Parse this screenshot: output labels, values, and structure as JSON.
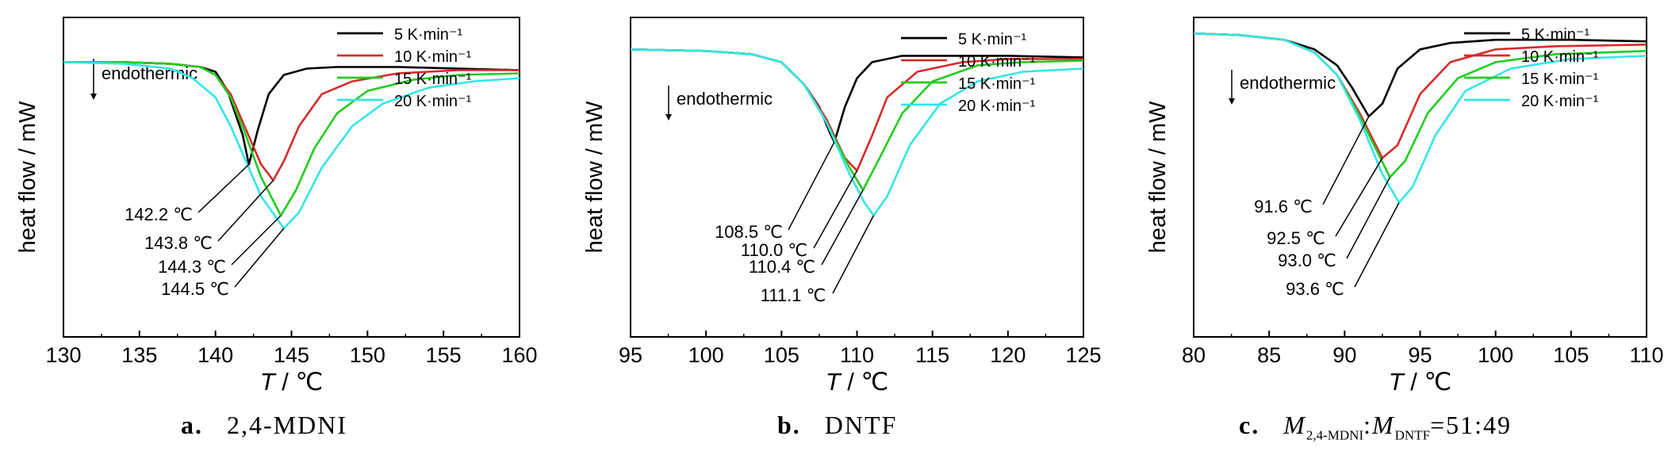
{
  "figure": {
    "y_axis_label": "heat flow / mW",
    "x_axis_label": {
      "var": "T",
      "unit": " / ℃"
    },
    "annotation": "endothermic",
    "legend": [
      "5 K·min⁻¹",
      "10 K·min⁻¹",
      "15 K·min⁻¹",
      "20 K·min⁻¹"
    ],
    "colors": {
      "5": "#000000",
      "10": "#d62b2b",
      "15": "#22cc22",
      "20": "#33e6e6"
    }
  },
  "captions": {
    "a": {
      "label": "a.",
      "text": "2,4-MDNI"
    },
    "b": {
      "label": "b.",
      "text": "DNTF"
    },
    "c": {
      "label": "c.",
      "m1": "M",
      "sub1": "2,4-MDNI",
      "colon": ":",
      "m2": "M",
      "sub2": "DNTF",
      "ratio": "=51:49"
    }
  },
  "chart_data": [
    {
      "type": "line",
      "panel": "a",
      "xlabel": "T / ℃",
      "ylabel": "heat flow / mW",
      "xlim": [
        130,
        160
      ],
      "xticks": [
        130,
        135,
        140,
        145,
        150,
        155,
        160
      ],
      "ylim": [
        0,
        10
      ],
      "grid": false,
      "legend_position": "top-right",
      "series": [
        {
          "name": "5 K·min⁻¹",
          "color": "#000000",
          "x": [
            130,
            134,
            137,
            139,
            140,
            140.8,
            141.3,
            141.8,
            142.2,
            142.8,
            143.5,
            144.5,
            146,
            148,
            152,
            156,
            160
          ],
          "y": [
            8.6,
            8.6,
            8.55,
            8.45,
            8.3,
            7.7,
            7.0,
            6.3,
            5.4,
            6.5,
            7.6,
            8.2,
            8.4,
            8.45,
            8.45,
            8.4,
            8.35
          ]
        },
        {
          "name": "10 K·min⁻¹",
          "color": "#d62b2b",
          "x": [
            130,
            134,
            137,
            139,
            140,
            141,
            142,
            143,
            143.8,
            144.5,
            145.5,
            147,
            149,
            152,
            156,
            160
          ],
          "y": [
            8.6,
            8.6,
            8.55,
            8.45,
            8.2,
            7.6,
            6.5,
            5.4,
            4.9,
            5.5,
            6.6,
            7.6,
            8.0,
            8.25,
            8.35,
            8.35
          ]
        },
        {
          "name": "15 K·min⁻¹",
          "color": "#22cc22",
          "x": [
            130,
            134,
            137,
            139,
            140,
            141,
            142,
            143,
            144.3,
            145.3,
            146.5,
            148,
            150,
            153,
            156,
            160
          ],
          "y": [
            8.6,
            8.6,
            8.55,
            8.45,
            8.2,
            7.5,
            6.3,
            5.0,
            3.8,
            4.6,
            5.9,
            7.0,
            7.7,
            8.05,
            8.2,
            8.25
          ]
        },
        {
          "name": "20 K·min⁻¹",
          "color": "#33e6e6",
          "x": [
            130,
            134,
            137,
            138.5,
            140,
            141,
            142,
            143,
            144.5,
            145.5,
            147,
            149,
            151,
            154,
            157,
            160
          ],
          "y": [
            8.6,
            8.55,
            8.4,
            8.1,
            7.5,
            6.6,
            5.5,
            4.4,
            3.4,
            3.9,
            5.3,
            6.6,
            7.3,
            7.8,
            8.0,
            8.1
          ]
        }
      ],
      "peak_labels": [
        {
          "text": "142.2 ℃",
          "series": 0
        },
        {
          "text": "143.8 ℃",
          "series": 1
        },
        {
          "text": "144.3 ℃",
          "series": 2
        },
        {
          "text": "144.5 ℃",
          "series": 3
        }
      ]
    },
    {
      "type": "line",
      "panel": "b",
      "xlabel": "T / ℃",
      "ylabel": "heat flow / mW",
      "xlim": [
        95,
        125
      ],
      "xticks": [
        95,
        100,
        105,
        110,
        115,
        120,
        125
      ],
      "ylim": [
        0,
        10
      ],
      "grid": false,
      "legend_position": "top-right",
      "series": [
        {
          "name": "5 K·min⁻¹",
          "color": "#000000",
          "x": [
            95,
            100,
            103,
            105,
            106.5,
            107.5,
            108.2,
            108.5,
            109.2,
            110,
            111,
            113,
            116,
            120,
            125
          ],
          "y": [
            9.0,
            8.95,
            8.85,
            8.6,
            7.9,
            7.2,
            6.4,
            6.1,
            7.2,
            8.1,
            8.6,
            8.8,
            8.8,
            8.8,
            8.75
          ]
        },
        {
          "name": "10 K·min⁻¹",
          "color": "#d62b2b",
          "x": [
            95,
            100,
            103,
            105,
            106.5,
            108,
            109.2,
            110,
            111,
            112,
            114,
            117,
            120,
            125
          ],
          "y": [
            9.0,
            8.95,
            8.85,
            8.6,
            7.9,
            6.8,
            5.6,
            5.2,
            6.3,
            7.5,
            8.3,
            8.6,
            8.7,
            8.7
          ]
        },
        {
          "name": "15 K·min⁻¹",
          "color": "#22cc22",
          "x": [
            95,
            100,
            103,
            105,
            106.5,
            108,
            109.5,
            110.4,
            111.5,
            113,
            115,
            118,
            121,
            125
          ],
          "y": [
            9.0,
            8.95,
            8.85,
            8.6,
            7.9,
            6.7,
            5.3,
            4.6,
            5.6,
            7.0,
            8.0,
            8.5,
            8.6,
            8.65
          ]
        },
        {
          "name": "20 K·min⁻¹",
          "color": "#33e6e6",
          "x": [
            95,
            100,
            103,
            105,
            106.5,
            108,
            109.5,
            110.5,
            111.1,
            112,
            113.5,
            115.5,
            118,
            121,
            125
          ],
          "y": [
            9.0,
            8.95,
            8.85,
            8.6,
            7.9,
            6.7,
            5.1,
            4.2,
            3.8,
            4.4,
            6.0,
            7.3,
            8.0,
            8.3,
            8.4
          ]
        }
      ],
      "peak_labels": [
        {
          "text": "108.5 ℃",
          "series": 0
        },
        {
          "text": "110.0 ℃",
          "series": 1
        },
        {
          "text": "110.4 ℃",
          "series": 2
        },
        {
          "text": "111.1 ℃",
          "series": 3
        }
      ]
    },
    {
      "type": "line",
      "panel": "c",
      "xlabel": "T / ℃",
      "ylabel": "heat flow / mW",
      "xlim": [
        80,
        110
      ],
      "xticks": [
        80,
        85,
        90,
        95,
        100,
        105,
        110
      ],
      "ylim": [
        0,
        10
      ],
      "grid": false,
      "legend_position": "top-right",
      "series": [
        {
          "name": "5 K·min⁻¹",
          "color": "#000000",
          "x": [
            80,
            83,
            86,
            88,
            89.5,
            90.5,
            91.6,
            92.5,
            93.5,
            95,
            97,
            100,
            105,
            110
          ],
          "y": [
            9.5,
            9.45,
            9.3,
            9.0,
            8.5,
            7.8,
            6.9,
            7.3,
            8.4,
            9.0,
            9.2,
            9.3,
            9.3,
            9.25
          ]
        },
        {
          "name": "10 K·min⁻¹",
          "color": "#d62b2b",
          "x": [
            80,
            83,
            86,
            88,
            89.5,
            91,
            92.5,
            93.5,
            95,
            97,
            100,
            104,
            110
          ],
          "y": [
            9.5,
            9.45,
            9.3,
            8.9,
            8.2,
            7.0,
            5.6,
            6.0,
            7.6,
            8.6,
            9.0,
            9.1,
            9.15
          ]
        },
        {
          "name": "15 K·min⁻¹",
          "color": "#22cc22",
          "x": [
            80,
            83,
            86,
            88,
            89.5,
            91,
            93.0,
            94,
            95.5,
            97.5,
            100,
            104,
            110
          ],
          "y": [
            9.5,
            9.45,
            9.3,
            8.9,
            8.2,
            6.9,
            5.0,
            5.5,
            7.0,
            8.1,
            8.6,
            8.85,
            8.95
          ]
        },
        {
          "name": "20 K·min⁻¹",
          "color": "#33e6e6",
          "x": [
            80,
            83,
            86,
            88,
            89.5,
            91,
            92.5,
            93.6,
            94.5,
            96,
            98,
            101,
            105,
            110
          ],
          "y": [
            9.5,
            9.45,
            9.3,
            8.9,
            8.2,
            6.8,
            5.1,
            4.2,
            4.7,
            6.3,
            7.7,
            8.4,
            8.7,
            8.8
          ]
        }
      ],
      "peak_labels": [
        {
          "text": "91.6 ℃",
          "series": 0
        },
        {
          "text": "92.5 ℃",
          "series": 1
        },
        {
          "text": "93.0 ℃",
          "series": 2
        },
        {
          "text": "93.6 ℃",
          "series": 3
        }
      ]
    }
  ]
}
